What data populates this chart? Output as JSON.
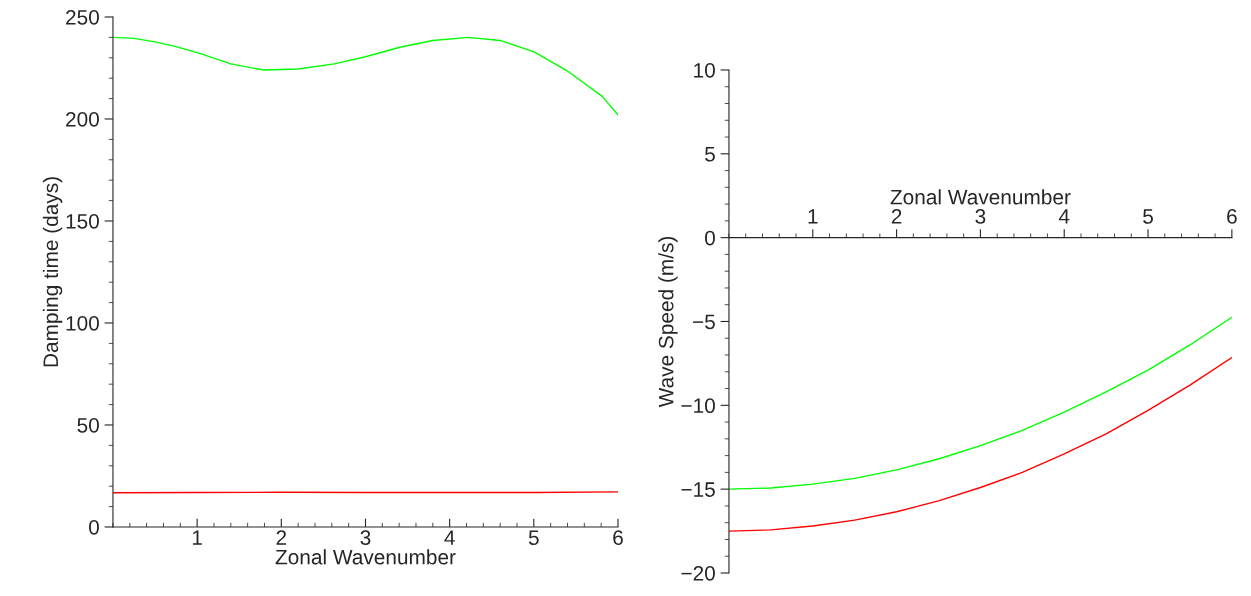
{
  "chart_data": [
    {
      "type": "line",
      "xlabel": "Zonal Wavenumber",
      "ylabel": "Damping time (days)",
      "xlim": [
        0,
        6
      ],
      "ylim": [
        0,
        250
      ],
      "xticks": [
        1,
        2,
        3,
        4,
        5,
        6
      ],
      "yticks": [
        0,
        50,
        100,
        150,
        200,
        250
      ],
      "grid": false,
      "legend": false,
      "series": [
        {
          "color": "#00ff00",
          "x": [
            0,
            0.25,
            0.5,
            0.75,
            1.04,
            1.4,
            1.79,
            2.2,
            2.63,
            3.0,
            3.42,
            3.8,
            4.22,
            4.6,
            5.01,
            5.4,
            5.81,
            6
          ],
          "values": [
            240,
            239.5,
            237.8,
            235.5,
            232.0,
            227.0,
            224.0,
            224.5,
            227,
            230.5,
            235.3,
            238.5,
            240,
            238.5,
            232.8,
            223.5,
            211.2,
            202
          ]
        },
        {
          "color": "#ff0000",
          "x": [
            0,
            1,
            2,
            3,
            4,
            5,
            6
          ],
          "values": [
            16.8,
            16.9,
            17,
            16.9,
            16.9,
            16.9,
            17.2
          ]
        }
      ]
    },
    {
      "type": "line",
      "xlabel": "Zonal Wavenumber",
      "ylabel": "Wave Speed (m/s)",
      "xlim": [
        0,
        6
      ],
      "ylim": [
        -20,
        10
      ],
      "xticks": [
        1,
        2,
        3,
        4,
        5,
        6
      ],
      "yticks": [
        {
          "value": -20,
          "label": "−20"
        },
        {
          "value": -15,
          "label": "−15"
        },
        {
          "value": -10,
          "label": "−10"
        },
        {
          "value": -5,
          "label": "−5"
        },
        0,
        5,
        10
      ],
      "grid": false,
      "legend": false,
      "series": [
        {
          "color": "#00ff00",
          "x": [
            0,
            0.5,
            1,
            1.5,
            2,
            2.5,
            3,
            3.5,
            4,
            4.5,
            5,
            5.5,
            6
          ],
          "values": [
            -15,
            -14.93,
            -14.7,
            -14.36,
            -13.85,
            -13.2,
            -12.4,
            -11.5,
            -10.4,
            -9.2,
            -7.9,
            -6.4,
            -4.75
          ]
        },
        {
          "color": "#ff0000",
          "x": [
            0,
            0.5,
            1,
            1.5,
            2,
            2.5,
            3,
            3.5,
            4,
            4.5,
            5,
            5.5,
            6
          ],
          "values": [
            -17.5,
            -17.43,
            -17.2,
            -16.85,
            -16.35,
            -15.7,
            -14.9,
            -14.0,
            -12.9,
            -11.7,
            -10.3,
            -8.8,
            -7.15
          ]
        }
      ]
    }
  ]
}
